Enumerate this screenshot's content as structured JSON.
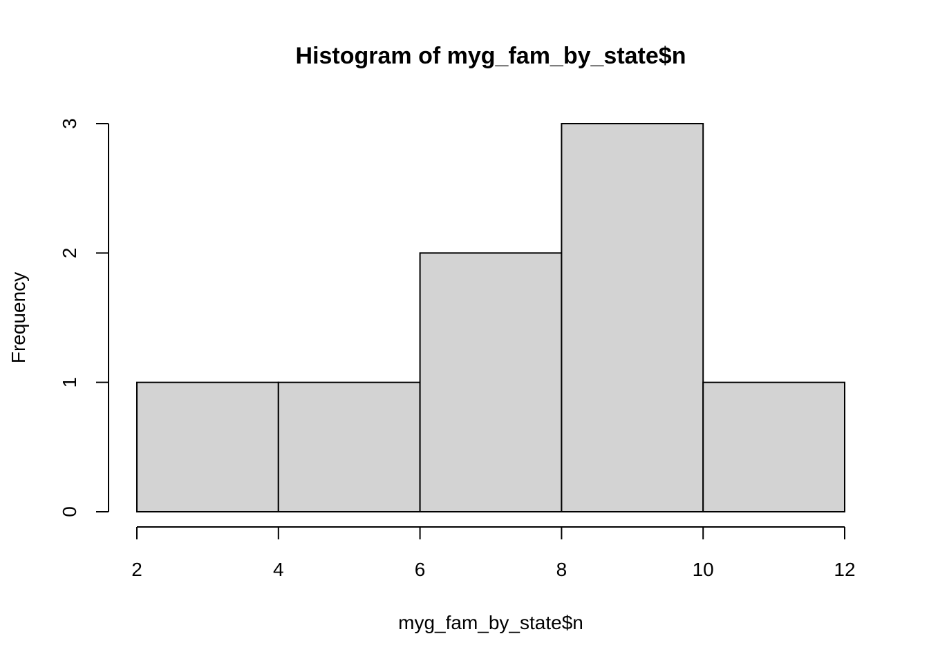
{
  "chart_data": {
    "type": "bar",
    "title": "Histogram of myg_fam_by_state$n",
    "xlabel": "myg_fam_by_state$n",
    "ylabel": "Frequency",
    "bins": [
      {
        "start": 2,
        "end": 4,
        "count": 1
      },
      {
        "start": 4,
        "end": 6,
        "count": 1
      },
      {
        "start": 6,
        "end": 8,
        "count": 2
      },
      {
        "start": 8,
        "end": 10,
        "count": 3
      },
      {
        "start": 10,
        "end": 12,
        "count": 1
      }
    ],
    "x_ticks": [
      2,
      4,
      6,
      8,
      10,
      12
    ],
    "y_ticks": [
      0,
      1,
      2,
      3
    ],
    "xlim": [
      2,
      12
    ],
    "ylim": [
      0,
      3
    ],
    "grid": false,
    "bar_color": "#d3d3d3",
    "edge_color": "#000000"
  }
}
